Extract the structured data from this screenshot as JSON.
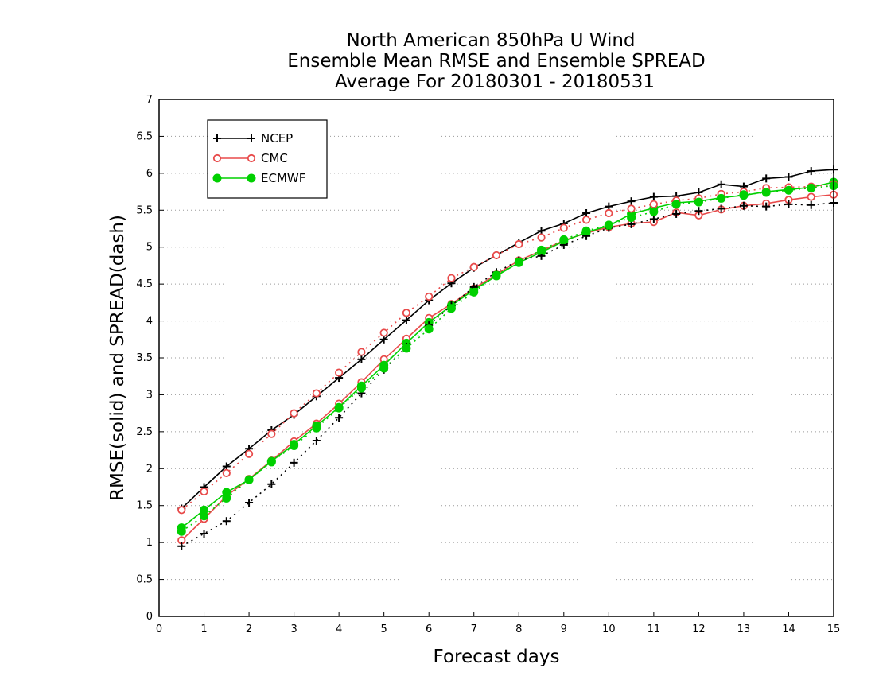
{
  "chart_data": {
    "type": "line",
    "title": [
      "North American 850hPa U Wind",
      "Ensemble Mean RMSE and Ensemble SPREAD",
      "Average For 20180301 - 20180531"
    ],
    "xlabel": "Forecast days",
    "ylabel": "RMSE(solid) and SPREAD(dash)",
    "xlim": [
      0,
      15
    ],
    "ylim": [
      0,
      7
    ],
    "x_ticks": [
      "0",
      "1",
      "2",
      "3",
      "4",
      "5",
      "6",
      "7",
      "8",
      "9",
      "10",
      "11",
      "12",
      "13",
      "14",
      "15"
    ],
    "y_ticks": [
      "0",
      "0.5",
      "1",
      "1.5",
      "2",
      "2.5",
      "3",
      "3.5",
      "4",
      "4.5",
      "5",
      "5.5",
      "6",
      "6.5",
      "7"
    ],
    "grid": true,
    "legend_position": "top-left",
    "x": [
      0.5,
      1,
      1.5,
      2,
      2.5,
      3,
      3.5,
      4,
      4.5,
      5,
      5.5,
      6,
      6.5,
      7,
      7.5,
      8,
      8.5,
      9,
      9.5,
      10,
      10.5,
      11,
      11.5,
      12,
      12.5,
      13,
      13.5,
      14,
      14.5,
      15
    ],
    "series": [
      {
        "name": "NCEP",
        "kind": "RMSE",
        "style": "solid",
        "color": "#000000",
        "marker": "plus",
        "values": [
          1.46,
          1.75,
          2.03,
          2.27,
          2.52,
          2.73,
          2.98,
          3.23,
          3.48,
          3.75,
          4.01,
          4.28,
          4.51,
          4.72,
          4.89,
          5.06,
          5.22,
          5.32,
          5.46,
          5.55,
          5.62,
          5.68,
          5.69,
          5.74,
          5.85,
          5.82,
          5.93,
          5.95,
          6.03,
          6.05
        ]
      },
      {
        "name": "CMC",
        "kind": "RMSE",
        "style": "solid",
        "color": "#e84a4a",
        "marker": "open-circle",
        "values": [
          1.03,
          1.32,
          1.63,
          1.86,
          2.11,
          2.37,
          2.61,
          2.88,
          3.17,
          3.48,
          3.76,
          4.04,
          4.23,
          4.44,
          4.63,
          4.82,
          4.95,
          5.09,
          5.19,
          5.27,
          5.32,
          5.34,
          5.47,
          5.43,
          5.51,
          5.56,
          5.59,
          5.64,
          5.68,
          5.71
        ]
      },
      {
        "name": "ECMWF",
        "kind": "RMSE",
        "style": "solid",
        "color": "#00d000",
        "marker": "filled-circle",
        "values": [
          1.2,
          1.44,
          1.68,
          1.85,
          2.1,
          2.33,
          2.58,
          2.83,
          3.12,
          3.4,
          3.7,
          3.98,
          4.21,
          4.42,
          4.61,
          4.79,
          4.93,
          5.08,
          5.2,
          5.29,
          5.45,
          5.53,
          5.6,
          5.62,
          5.67,
          5.7,
          5.75,
          5.78,
          5.81,
          5.88
        ]
      },
      {
        "name": "NCEP",
        "kind": "SPREAD",
        "style": "dash",
        "color": "#000000",
        "marker": "plus",
        "values": [
          0.95,
          1.12,
          1.29,
          1.54,
          1.79,
          2.08,
          2.38,
          2.69,
          3.02,
          3.34,
          3.65,
          3.94,
          4.21,
          4.46,
          4.66,
          4.82,
          4.88,
          5.03,
          5.15,
          5.26,
          5.31,
          5.38,
          5.45,
          5.49,
          5.52,
          5.56,
          5.55,
          5.58,
          5.57,
          5.6
        ]
      },
      {
        "name": "CMC",
        "kind": "SPREAD",
        "style": "dash",
        "color": "#e84a4a",
        "marker": "open-circle",
        "values": [
          1.44,
          1.69,
          1.94,
          2.2,
          2.47,
          2.75,
          3.02,
          3.3,
          3.58,
          3.84,
          4.11,
          4.33,
          4.58,
          4.73,
          4.89,
          5.04,
          5.13,
          5.26,
          5.37,
          5.46,
          5.52,
          5.58,
          5.63,
          5.66,
          5.72,
          5.75,
          5.8,
          5.81,
          5.82,
          5.85
        ]
      },
      {
        "name": "ECMWF",
        "kind": "SPREAD",
        "style": "dash",
        "color": "#00d000",
        "marker": "filled-circle",
        "values": [
          1.15,
          1.36,
          1.6,
          1.85,
          2.09,
          2.31,
          2.55,
          2.82,
          3.09,
          3.36,
          3.63,
          3.89,
          4.17,
          4.39,
          4.62,
          4.8,
          4.96,
          5.1,
          5.22,
          5.3,
          5.4,
          5.48,
          5.58,
          5.61,
          5.66,
          5.71,
          5.74,
          5.77,
          5.8,
          5.83
        ]
      }
    ],
    "legend": [
      {
        "name": "NCEP",
        "color": "#000000",
        "marker": "plus"
      },
      {
        "name": "CMC",
        "color": "#e84a4a",
        "marker": "open-circle"
      },
      {
        "name": "ECMWF",
        "color": "#00d000",
        "marker": "filled-circle"
      }
    ]
  }
}
